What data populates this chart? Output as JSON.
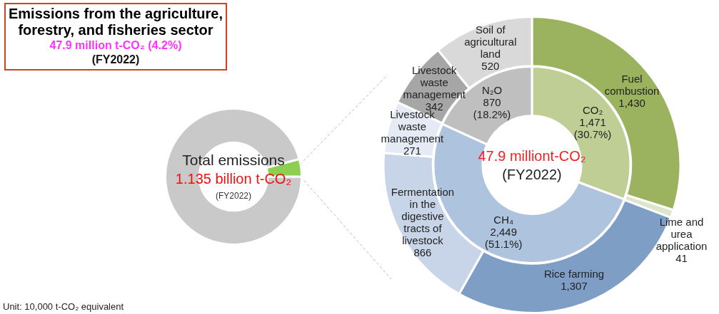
{
  "chart_data": [
    {
      "type": "donut",
      "title": "Emissions from the agriculture, forestry, and fisheries sector",
      "subtitle": "47.9 million t-CO₂ (4.2%)\n(FY2022)",
      "categories": [
        null,
        null
      ],
      "values": [
        4.2,
        95.8
      ],
      "colors": [
        "#8dcf50",
        "#c9c9c9"
      ],
      "annotations": [
        "Total emissions",
        "1.135 billion t-CO₂",
        "(FY2022)",
        "Unit: 10,000 t-CO₂ equivalent"
      ]
    },
    {
      "type": "donut",
      "categories": [
        "Fuel combustion",
        "Lime and urea application",
        "Rice farming",
        "Fermentation in the digestive tracts of livestock",
        "Livestock waste management",
        "Livestock waste management",
        "Soil of agricultural land"
      ],
      "values": [
        1430,
        41,
        1307,
        866,
        271,
        342,
        520
      ],
      "colors": [
        "#9bb35e",
        "#dde5cb",
        "#7f9ec6",
        "#c8d5e8",
        "#e5ebf5",
        "#a6a6a6",
        "#d9d9d9"
      ],
      "value_labels": [
        "1,430",
        "41",
        "1,307",
        "866",
        "271",
        "342",
        "520"
      ]
    },
    {
      "type": "donut",
      "categories": [
        "CO₂",
        "CH₄",
        "N₂O"
      ],
      "values": [
        1471,
        2449,
        870
      ],
      "colors": [
        "#bfce95",
        "#aec3de",
        "#bfbfbf"
      ],
      "value_labels": [
        "1,471\n(30.7%)",
        "2,449\n(51.1%)",
        "870\n(18.2%)"
      ],
      "annotations": [
        "47.9 milliont-CO₂",
        "(FY2022)"
      ]
    }
  ]
}
